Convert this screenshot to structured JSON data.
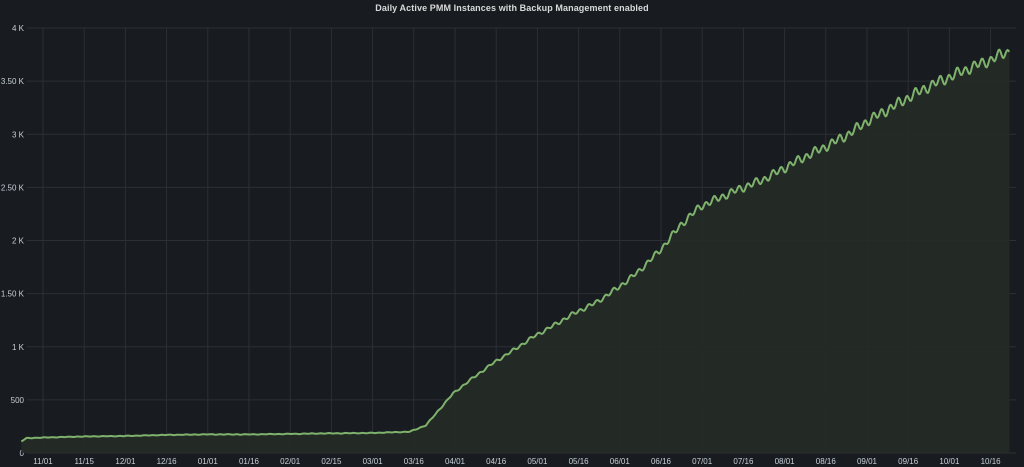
{
  "panel": {
    "title": "Daily Active PMM Instances with Backup Management enabled"
  },
  "chart_data": {
    "type": "area",
    "title": "Daily Active PMM Instances with Backup Management enabled",
    "xlabel": "",
    "ylabel": "",
    "x_ticks": [
      "11/01",
      "11/15",
      "12/01",
      "12/16",
      "01/01",
      "01/16",
      "02/01",
      "02/15",
      "03/01",
      "03/16",
      "04/01",
      "04/16",
      "05/01",
      "05/16",
      "06/01",
      "06/16",
      "07/01",
      "07/16",
      "08/01",
      "08/16",
      "09/01",
      "09/16",
      "10/01",
      "10/16"
    ],
    "y_ticks": [
      "0",
      "500",
      "1 K",
      "1.50 K",
      "2 K",
      "2.50 K",
      "3 K",
      "3.50 K",
      "4 K"
    ],
    "ylim": [
      0,
      4000
    ],
    "grid": true,
    "legend": "none",
    "colors": {
      "line": "#7eb26d",
      "fill": "#252b25",
      "grid": "#2c2f35",
      "tick_text": "#c7d0d9",
      "background": "#181b1f"
    },
    "series": [
      {
        "date_range": [
          "10/24",
          "10/24"
        ],
        "points": [
          [
            "10/24",
            110
          ],
          [
            "10/26",
            140
          ],
          [
            "11/01",
            145
          ],
          [
            "11/15",
            155
          ],
          [
            "12/01",
            160
          ],
          [
            "12/16",
            170
          ],
          [
            "01/01",
            175
          ],
          [
            "01/16",
            175
          ],
          [
            "02/01",
            180
          ],
          [
            "02/15",
            185
          ],
          [
            "03/01",
            188
          ],
          [
            "03/16",
            200
          ],
          [
            "03/22",
            260
          ],
          [
            "03/26",
            380
          ],
          [
            "04/01",
            560
          ],
          [
            "04/08",
            700
          ],
          [
            "04/16",
            850
          ],
          [
            "04/24",
            980
          ],
          [
            "05/01",
            1100
          ],
          [
            "05/08",
            1200
          ],
          [
            "05/16",
            1320
          ],
          [
            "05/24",
            1420
          ],
          [
            "06/01",
            1560
          ],
          [
            "06/08",
            1700
          ],
          [
            "06/16",
            1900
          ],
          [
            "06/24",
            2150
          ],
          [
            "07/01",
            2320
          ],
          [
            "07/08",
            2400
          ],
          [
            "07/16",
            2490
          ],
          [
            "07/24",
            2570
          ],
          [
            "08/01",
            2680
          ],
          [
            "08/08",
            2780
          ],
          [
            "08/16",
            2880
          ],
          [
            "08/24",
            2990
          ],
          [
            "09/01",
            3130
          ],
          [
            "09/08",
            3230
          ],
          [
            "09/16",
            3350
          ],
          [
            "09/24",
            3460
          ],
          [
            "10/01",
            3540
          ],
          [
            "10/08",
            3620
          ],
          [
            "10/16",
            3700
          ],
          [
            "10/20",
            3750
          ],
          [
            "10/23",
            3780
          ]
        ]
      }
    ]
  }
}
